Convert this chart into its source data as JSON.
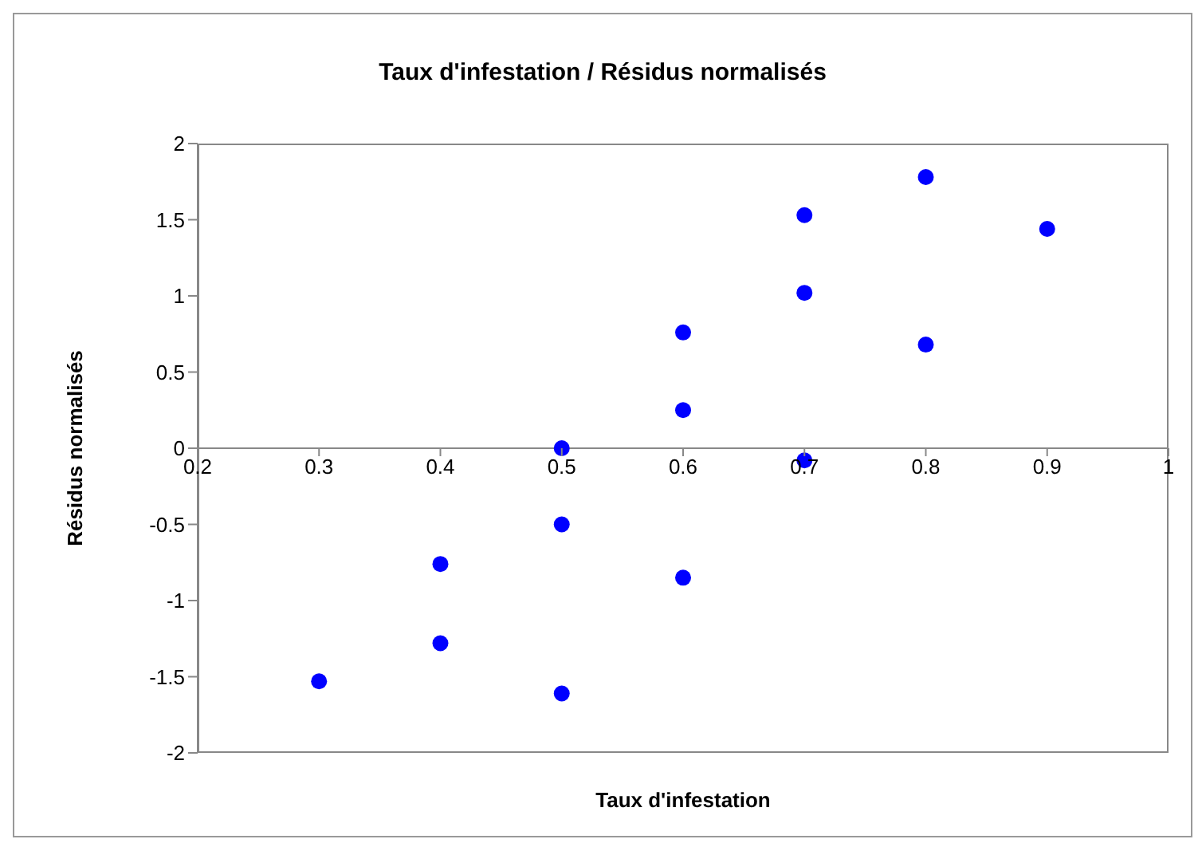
{
  "chart_data": {
    "type": "scatter",
    "title": "Taux d'infestation / Résidus normalisés",
    "xlabel": "Taux d'infestation",
    "ylabel": "Résidus normalisés",
    "x": [
      0.3,
      0.4,
      0.4,
      0.5,
      0.5,
      0.5,
      0.6,
      0.6,
      0.6,
      0.7,
      0.7,
      0.7,
      0.8,
      0.8,
      0.9
    ],
    "values": [
      -1.53,
      -0.76,
      -1.28,
      0,
      -0.5,
      -1.61,
      0.76,
      0.25,
      -0.85,
      1.53,
      1.02,
      -0.08,
      1.78,
      0.68,
      1.44
    ],
    "color": "#0000ff",
    "marker": "circle",
    "grid": false,
    "legend": false,
    "xlim": [
      0.2,
      1
    ],
    "xticks": [
      0.2,
      0.3,
      0.4,
      0.5,
      0.6,
      0.7,
      0.8,
      0.9,
      1
    ],
    "ylim": [
      -2,
      2
    ],
    "yticks": [
      -2,
      -1.5,
      -1,
      -0.5,
      0,
      0.5,
      1,
      1.5,
      2
    ]
  }
}
